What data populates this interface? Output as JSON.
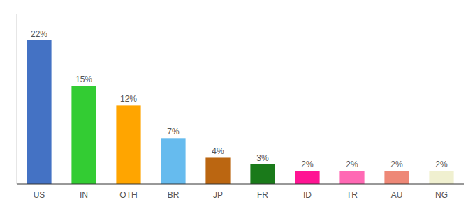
{
  "chart_data": {
    "type": "bar",
    "categories": [
      "US",
      "IN",
      "OTH",
      "BR",
      "JP",
      "FR",
      "ID",
      "TR",
      "AU",
      "NG"
    ],
    "values": [
      22,
      15,
      12,
      7,
      4,
      3,
      2,
      2,
      2,
      2
    ],
    "value_labels": [
      "22%",
      "15%",
      "12%",
      "7%",
      "4%",
      "3%",
      "2%",
      "2%",
      "2%",
      "2%"
    ],
    "colors": [
      "#4472c4",
      "#33cc33",
      "#ffa500",
      "#66bbee",
      "#bb6611",
      "#1a7a1a",
      "#ff1493",
      "#ff69b4",
      "#ee8877",
      "#f0f0d0"
    ],
    "ylim": [
      0,
      26
    ],
    "data_labels": true,
    "tick_labels": "x",
    "grid": false
  }
}
